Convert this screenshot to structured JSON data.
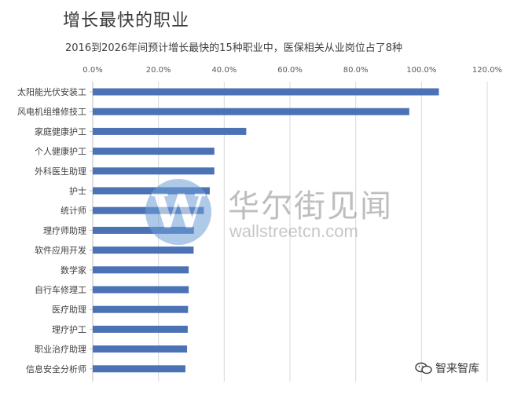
{
  "chart_data": {
    "type": "bar",
    "orientation": "horizontal",
    "title": "增长最快的职业",
    "subtitle": "2016到2026年间预计增长最快的15种职业中，医保相关从业岗位占了8种",
    "categories": [
      "太阳能光伏安装工",
      "风电机组维修技工",
      "家庭健康护工",
      "个人健康护工",
      "外科医生助理",
      "护士",
      "统计师",
      "理疗师助理",
      "软件应用开发",
      "数学家",
      "自行车修理工",
      "医疗助理",
      "理疗护工",
      "职业治疗助理",
      "信息安全分析师"
    ],
    "values": [
      105.3,
      96.3,
      46.7,
      37.0,
      37.0,
      35.6,
      33.8,
      30.8,
      30.7,
      29.2,
      29.2,
      29.0,
      28.9,
      28.7,
      28.2
    ],
    "value_unit": "%",
    "xlim": [
      0,
      120
    ],
    "x_ticks": [
      "0.0%",
      "20.0%",
      "40.0%",
      "60.0%",
      "80.0%",
      "100.0%",
      "120.0%"
    ],
    "axis_position": "top",
    "grid": true,
    "bar_color": "#4a72b5"
  },
  "watermark": {
    "logo_letter": "W",
    "name": "华尔街见闻",
    "url": "wallstreetcn.com"
  },
  "source": {
    "icon": "wechat-icon",
    "label": "智来智库"
  }
}
